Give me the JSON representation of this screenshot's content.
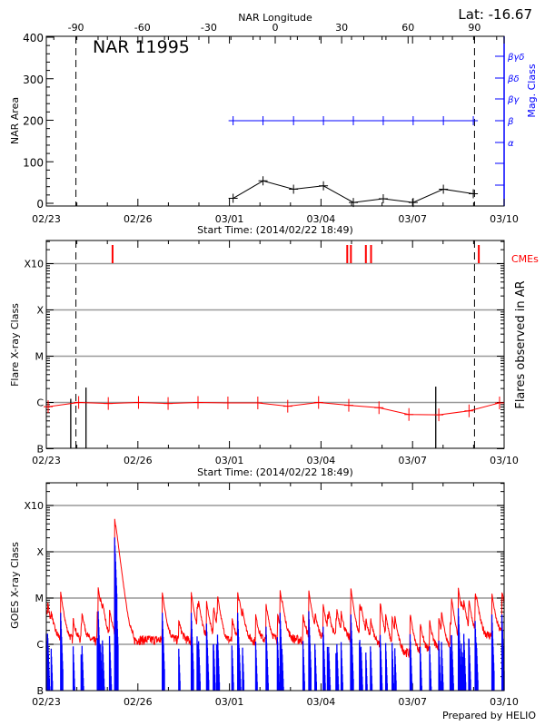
{
  "chart_data": [
    {
      "type": "line",
      "title": "NAR 11995",
      "lat_label": "Lat: -16.67",
      "top_xlabel": "NAR Longitude",
      "top_ticks": [
        "-90",
        "-60",
        "-30",
        "0",
        "30",
        "60",
        "90"
      ],
      "xlabel": "Start Time: (2014/02/22 18:49)",
      "x_ticks": [
        "02/23",
        "02/26",
        "03/01",
        "03/04",
        "03/07",
        "03/10"
      ],
      "ylabel": "NAR Area",
      "y_ticks": [
        "0",
        "100",
        "200",
        "300",
        "400"
      ],
      "ylim": [
        0,
        405
      ],
      "y2label": "Mag. Class",
      "y2_ticks": [
        "βγδ",
        "βδ",
        "βγ",
        "β",
        "α"
      ],
      "limb_days": [
        0.97,
        14.03
      ],
      "area_series": {
        "days": [
          6.12,
          7.1,
          8.1,
          9.08,
          10.06,
          11.04,
          12.02,
          13.01,
          13.99
        ],
        "values": [
          12,
          54,
          34,
          42,
          2,
          11,
          2,
          34,
          23
        ]
      },
      "mag_series": {
        "days": [
          6.12,
          7.1,
          8.1,
          9.08,
          10.06,
          11.04,
          12.02,
          13.01,
          13.99
        ],
        "values": [
          "β",
          "β",
          "β",
          "β",
          "β",
          "β",
          "β",
          "β",
          "β"
        ]
      },
      "colors": {
        "mag": "#0000ff",
        "area": "#000000"
      }
    },
    {
      "type": "line",
      "xlabel": "Start Time: (2014/02/22 18:49)",
      "x_ticks": [
        "02/23",
        "02/26",
        "03/01",
        "03/04",
        "03/07",
        "03/10"
      ],
      "ylabel": "Flare X-ray Class",
      "y_ticks": [
        "B",
        "C",
        "M",
        "X",
        "X10"
      ],
      "y2label": "Flares observed in AR",
      "cme_label": "CMEs",
      "limb_days": [
        0.97,
        14.03
      ],
      "smoothed_class": {
        "days": [
          0.06,
          1.06,
          2.03,
          3.02,
          3.99,
          4.97,
          5.95,
          6.93,
          7.91,
          8.92,
          9.91,
          10.9,
          11.88,
          12.86,
          13.85,
          14.85
        ],
        "flux": [
          8.1e-07,
          1e-06,
          9.5e-07,
          1e-06,
          9.5e-07,
          1e-06,
          9.8e-07,
          9.8e-07,
          8.3e-07,
          1e-06,
          8.7e-07,
          7.7e-07,
          5.5e-07,
          5.4e-07,
          6.6e-07,
          9.8e-07
        ]
      },
      "flares": {
        "days": [
          0.8,
          1.3,
          12.76
        ],
        "flux": [
          1.2e-06,
          2.1e-06,
          2.2e-06
        ]
      },
      "cmes": {
        "days": [
          2.17,
          9.86,
          9.98,
          10.47,
          10.64,
          14.17
        ]
      },
      "colors": {
        "curve": "#ff0000",
        "cme": "#ff0000",
        "flare": "#000000",
        "grid": "#999999"
      }
    },
    {
      "type": "line",
      "x_ticks": [
        "02/23",
        "02/26",
        "03/01",
        "03/04",
        "03/07",
        "03/10"
      ],
      "ylabel": "GOES X-ray Class",
      "y_ticks": [
        "B",
        "C",
        "M",
        "X",
        "X10"
      ],
      "baseline": {
        "days": [
          0,
          0.5,
          1,
          2,
          3,
          4,
          5,
          6,
          7,
          8,
          9,
          10,
          10.8,
          11.5,
          12,
          12.5,
          13,
          13.5,
          14,
          15
        ],
        "flux": [
          1.3e-06,
          1.2e-06,
          1.1e-06,
          1.1e-06,
          1.2e-06,
          1.2e-06,
          1.1e-06,
          1.1e-06,
          1.1e-06,
          1.2e-06,
          1.2e-06,
          1.2e-06,
          9e-07,
          6.5e-07,
          6e-07,
          6.5e-07,
          7.5e-07,
          8e-07,
          1.3e-06,
          1.6e-06
        ]
      },
      "flares": {
        "days": [
          0.47,
          1.7,
          2.24,
          2.28,
          3.8,
          4.75,
          5.25,
          6.27,
          7.2,
          7.66,
          8.6,
          9.07,
          9.98,
          12.86,
          13.5,
          14.05,
          14.6,
          14.93
        ],
        "flux": [
          1.2e-05,
          1.3e-05,
          0.00051,
          4e-05,
          1.2e-05,
          1.2e-05,
          7e-06,
          1.2e-05,
          6e-06,
          1.2e-05,
          1.3e-05,
          6e-06,
          1.1e-05,
          3e-06,
          1.5e-05,
          8e-06,
          1.1e-05,
          1.1e-05
        ]
      },
      "credit": "Prepared by HELIO",
      "colors": {
        "long": "#ff0000",
        "short": "#0000ff",
        "grid": "#999999"
      }
    }
  ]
}
